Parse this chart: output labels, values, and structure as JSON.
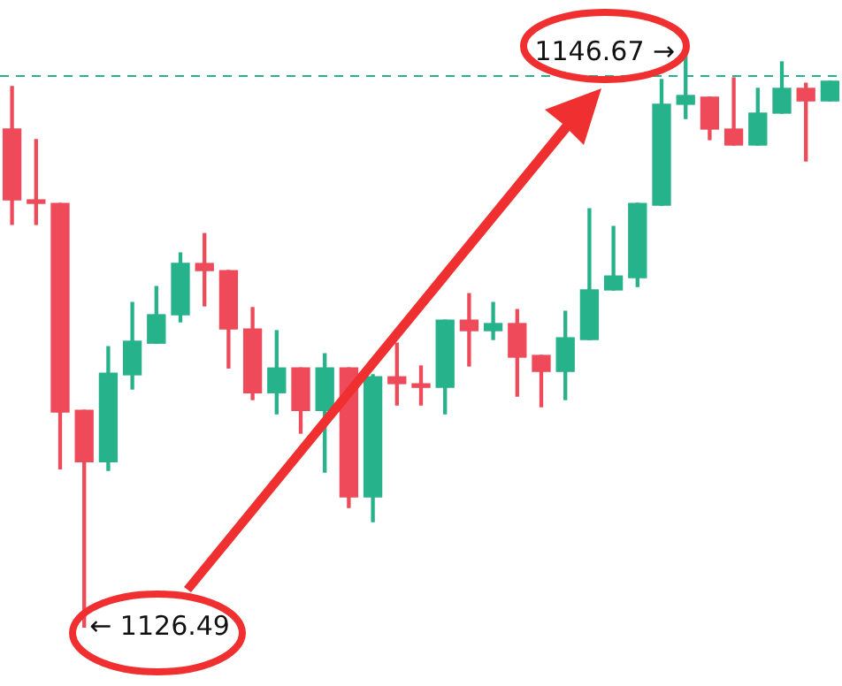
{
  "chart_data": {
    "type": "candlestick",
    "categories": [
      null,
      null,
      null,
      null,
      null,
      null,
      null,
      null,
      null,
      null,
      null,
      null,
      null,
      null,
      null,
      null,
      null,
      null,
      null,
      null,
      null,
      null,
      null,
      null,
      null,
      null,
      null,
      null,
      null,
      null,
      null,
      null,
      null,
      null,
      null
    ],
    "ohlc": [
      [
        1144.0,
        1145.49,
        1140.65,
        1141.51
      ],
      [
        1141.51,
        1143.63,
        1140.65,
        1141.39
      ],
      [
        1141.39,
        1141.39,
        1132.07,
        1134.06
      ],
      [
        1134.12,
        1134.12,
        1126.49,
        1132.32
      ],
      [
        1132.32,
        1136.36,
        1132.01,
        1135.43
      ],
      [
        1135.37,
        1137.91,
        1134.87,
        1136.55
      ],
      [
        1136.48,
        1138.47,
        1136.48,
        1137.48
      ],
      [
        1137.48,
        1139.65,
        1137.23,
        1139.28
      ],
      [
        1139.28,
        1140.33,
        1137.79,
        1139.03
      ],
      [
        1139.03,
        1139.03,
        1135.61,
        1136.98
      ],
      [
        1136.98,
        1137.73,
        1134.5,
        1134.74
      ],
      [
        1134.74,
        1136.92,
        1134.0,
        1135.61
      ],
      [
        1135.61,
        1135.61,
        1133.32,
        1134.12
      ],
      [
        1134.12,
        1136.11,
        1131.95,
        1135.61
      ],
      [
        1135.61,
        1135.61,
        1130.71,
        1131.08
      ],
      [
        1131.08,
        1135.37,
        1130.21,
        1135.3
      ],
      [
        1135.3,
        1136.48,
        1134.31,
        1135.06
      ],
      [
        1134.99,
        1135.68,
        1134.31,
        1134.93
      ],
      [
        1134.93,
        1137.29,
        1134.0,
        1137.29
      ],
      [
        1137.29,
        1138.22,
        1135.68,
        1136.92
      ],
      [
        1136.92,
        1137.91,
        1136.61,
        1137.17
      ],
      [
        1137.17,
        1137.66,
        1134.62,
        1135.99
      ],
      [
        1136.05,
        1136.05,
        1134.25,
        1135.49
      ],
      [
        1135.49,
        1137.6,
        1134.5,
        1136.67
      ],
      [
        1136.61,
        1141.2,
        1136.61,
        1138.35
      ],
      [
        1138.35,
        1140.58,
        1138.35,
        1138.84
      ],
      [
        1138.78,
        1141.39,
        1138.47,
        1141.39
      ],
      [
        1141.33,
        1145.74,
        1141.33,
        1144.87
      ],
      [
        1144.87,
        1146.67,
        1144.37,
        1145.18
      ],
      [
        1145.12,
        1145.12,
        1143.63,
        1144.0
      ],
      [
        1144.0,
        1145.8,
        1143.44,
        1143.44
      ],
      [
        1143.44,
        1145.43,
        1143.44,
        1144.56
      ],
      [
        1144.56,
        1146.36,
        1144.56,
        1145.43
      ],
      [
        1145.43,
        1145.61,
        1142.88,
        1144.99
      ],
      [
        1144.99,
        1145.68,
        1144.99,
        1145.68
      ]
    ],
    "colors": [
      "#ef4a5a",
      "#ef4a5a",
      "#ef4a5a",
      "#ef4a5a",
      "#26b28a",
      "#26b28a",
      "#26b28a",
      "#26b28a",
      "#ef4a5a",
      "#ef4a5a",
      "#ef4a5a",
      "#26b28a",
      "#ef4a5a",
      "#26b28a",
      "#ef4a5a",
      "#26b28a",
      "#ef4a5a",
      "#ef4a5a",
      "#26b28a",
      "#ef4a5a",
      "#26b28a",
      "#ef4a5a",
      "#ef4a5a",
      "#26b28a",
      "#26b28a",
      "#26b28a",
      "#26b28a",
      "#26b28a",
      "#26b28a",
      "#ef4a5a",
      "#ef4a5a",
      "#26b28a",
      "#26b28a",
      "#ef4a5a",
      "#26b28a"
    ],
    "ref_lines": [
      {
        "axis": "y",
        "value": 1145.86,
        "color": "#26b28a",
        "line_style": "dashed"
      }
    ],
    "annotations": [
      "1146.67 →",
      "← 1126.49"
    ],
    "legend": false
  }
}
